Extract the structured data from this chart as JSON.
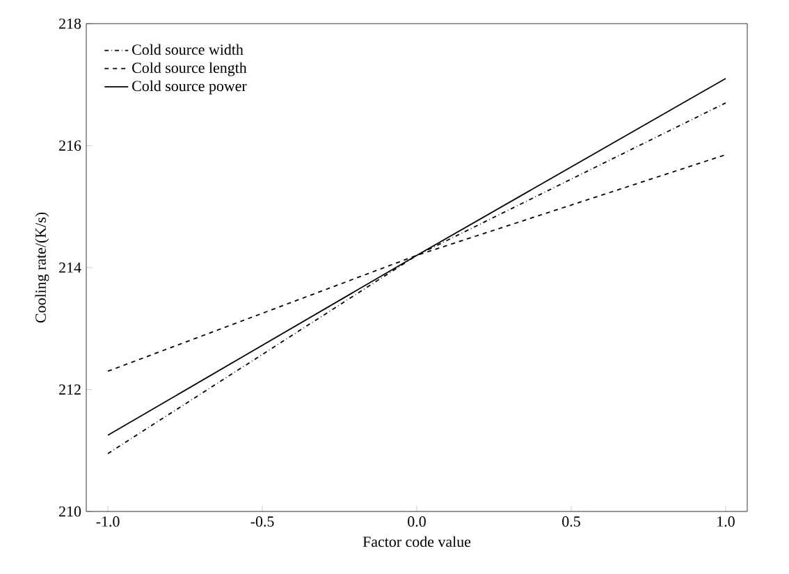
{
  "chart_data": {
    "type": "line",
    "xlabel": "Factor code value",
    "ylabel": "Cooling rate/(K/s)",
    "x": [
      -1.0,
      0.0,
      1.0
    ],
    "series": [
      {
        "name": "Cold source width",
        "color": "#000000",
        "line_style": "dashdot",
        "values": [
          210.95,
          214.2,
          216.7
        ]
      },
      {
        "name": "Cold source length",
        "color": "#000000",
        "line_style": "dashed",
        "values": [
          212.3,
          214.2,
          215.85
        ]
      },
      {
        "name": "Cold source power",
        "color": "#000000",
        "line_style": "solid",
        "values": [
          211.25,
          214.2,
          217.1
        ]
      }
    ],
    "xlim": [
      -1.07,
      1.07
    ],
    "ylim": [
      210,
      218
    ],
    "xticks": [
      {
        "value": -1.0,
        "label": "-1.0"
      },
      {
        "value": -0.5,
        "label": "-0.5"
      },
      {
        "value": 0.0,
        "label": "0.0"
      },
      {
        "value": 0.5,
        "label": "0.5"
      },
      {
        "value": 1.0,
        "label": "1.0"
      }
    ],
    "yticks": [
      210,
      212,
      214,
      216,
      218
    ],
    "grid": false,
    "legend": "top left",
    "marker": "none"
  }
}
